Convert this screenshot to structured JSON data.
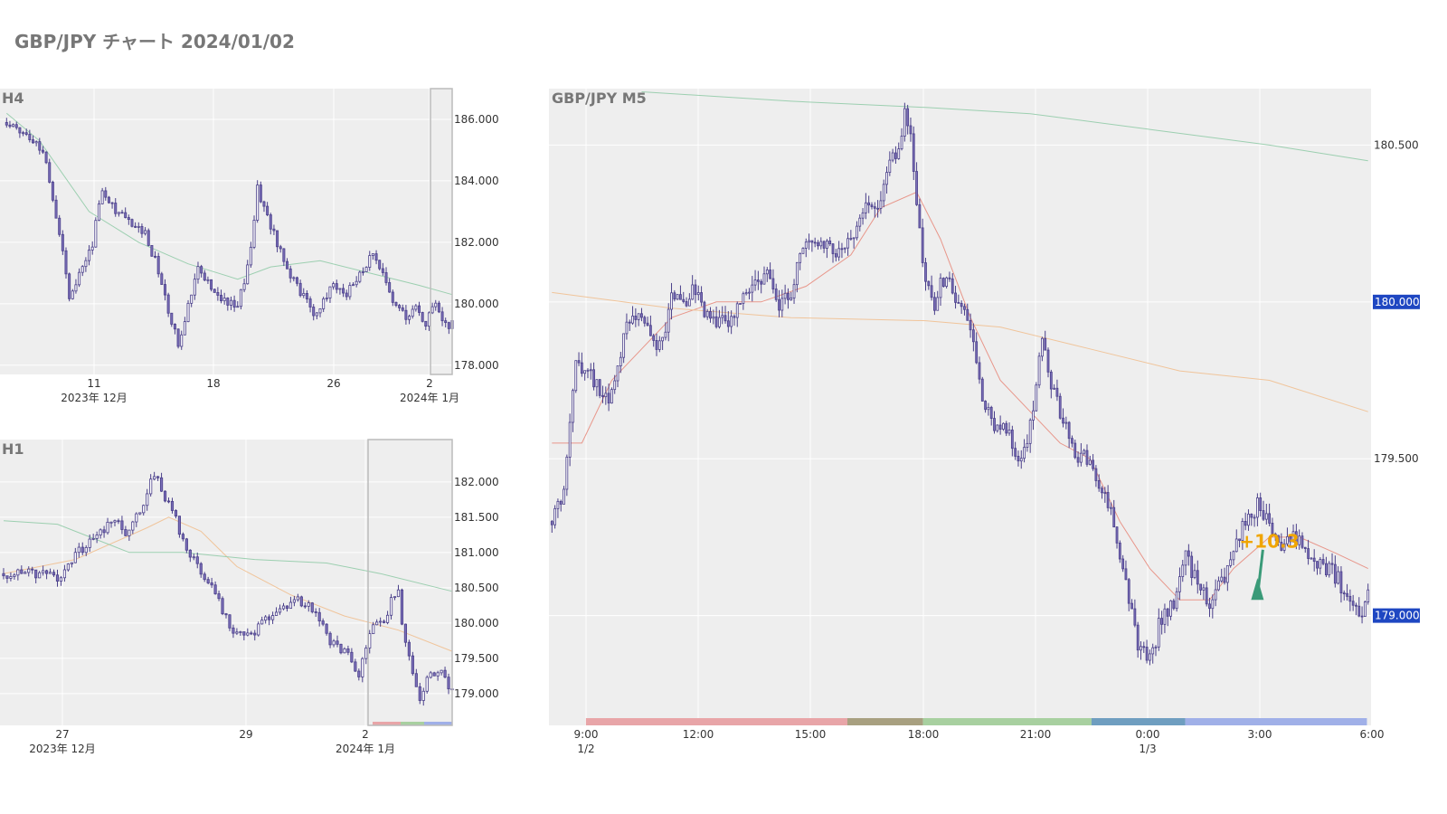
{
  "page": {
    "title": "GBP/JPY チャート 2024/01/02"
  },
  "colors": {
    "plot_bg": "#eeeeee",
    "grid": "#ffffff",
    "candle": "#7b6fb8",
    "candle_dark": "#4a3f8a",
    "ma_fast": "#e8968a",
    "ma_mid": "#f0c49a",
    "ma_slow": "#9ccfb0",
    "price_tag": "#1f47c2",
    "annotation": "#f0a500",
    "trade_marker": "#3a9a78"
  },
  "chart_data": [
    {
      "id": "h4",
      "type": "candlestick",
      "title": "H4",
      "ylim": [
        177.7,
        187.0
      ],
      "yticks": [
        178.0,
        180.0,
        182.0,
        184.0,
        186.0
      ],
      "ytick_labels": [
        "178.000",
        "180.000",
        "182.000",
        "184.000",
        "186.000"
      ],
      "xticks": [
        {
          "label": "11",
          "sub": "2023年 12月"
        },
        {
          "label": "18",
          "sub": ""
        },
        {
          "label": "26",
          "sub": ""
        },
        {
          "label": "2",
          "sub": "2024年 1月"
        }
      ],
      "anchors": [
        [
          0,
          185.9
        ],
        [
          8,
          185.4
        ],
        [
          12,
          184.7
        ],
        [
          16,
          182.3
        ],
        [
          19,
          180.3
        ],
        [
          23,
          181.2
        ],
        [
          26,
          182.0
        ],
        [
          29,
          183.8
        ],
        [
          32,
          183.2
        ],
        [
          36,
          182.7
        ],
        [
          42,
          182.3
        ],
        [
          46,
          181.1
        ],
        [
          49,
          179.7
        ],
        [
          52,
          178.7
        ],
        [
          55,
          180.0
        ],
        [
          58,
          181.3
        ],
        [
          62,
          180.5
        ],
        [
          66,
          180.1
        ],
        [
          70,
          179.8
        ],
        [
          74,
          181.8
        ],
        [
          76,
          183.8
        ],
        [
          79,
          182.8
        ],
        [
          82,
          182.0
        ],
        [
          86,
          181.0
        ],
        [
          90,
          180.2
        ],
        [
          93,
          179.7
        ],
        [
          96,
          180.0
        ],
        [
          99,
          180.7
        ],
        [
          103,
          180.3
        ],
        [
          107,
          180.9
        ],
        [
          111,
          181.6
        ],
        [
          114,
          180.9
        ],
        [
          117,
          180.0
        ],
        [
          121,
          179.6
        ],
        [
          124,
          179.9
        ],
        [
          127,
          179.3
        ],
        [
          130,
          180.1
        ],
        [
          133,
          179.3
        ],
        [
          135,
          179.3
        ]
      ],
      "ma": [
        {
          "name": "slow",
          "points": [
            [
              0,
              186.2
            ],
            [
              10,
              185.3
            ],
            [
              25,
              183.0
            ],
            [
              40,
              182.0
            ],
            [
              55,
              181.3
            ],
            [
              70,
              180.8
            ],
            [
              80,
              181.2
            ],
            [
              95,
              181.4
            ],
            [
              110,
              181.0
            ],
            [
              125,
              180.6
            ],
            [
              135,
              180.3
            ]
          ]
        }
      ],
      "n_candles": 136
    },
    {
      "id": "h1",
      "type": "candlestick",
      "title": "H1",
      "ylim": [
        178.55,
        182.6
      ],
      "yticks": [
        179.0,
        179.5,
        180.0,
        180.5,
        181.0,
        181.5,
        182.0
      ],
      "ytick_labels": [
        "179.000",
        "179.500",
        "180.000",
        "180.500",
        "181.000",
        "181.500",
        "182.000"
      ],
      "xticks": [
        {
          "label": "27",
          "sub": "2023年 12月"
        },
        {
          "label": "29",
          "sub": ""
        },
        {
          "label": "2",
          "sub": "2024年 1月"
        }
      ],
      "anchors": [
        [
          0,
          180.7
        ],
        [
          8,
          180.7
        ],
        [
          16,
          180.65
        ],
        [
          20,
          181.0
        ],
        [
          26,
          181.2
        ],
        [
          30,
          181.5
        ],
        [
          34,
          181.3
        ],
        [
          38,
          181.6
        ],
        [
          42,
          182.1
        ],
        [
          46,
          181.7
        ],
        [
          50,
          181.2
        ],
        [
          54,
          180.8
        ],
        [
          58,
          180.5
        ],
        [
          61,
          180.2
        ],
        [
          64,
          179.9
        ],
        [
          68,
          179.8
        ],
        [
          72,
          180.0
        ],
        [
          76,
          180.1
        ],
        [
          80,
          180.3
        ],
        [
          84,
          180.3
        ],
        [
          88,
          180.1
        ],
        [
          91,
          179.7
        ],
        [
          95,
          179.6
        ],
        [
          99,
          179.3
        ],
        [
          101,
          179.6
        ],
        [
          103,
          180.0
        ],
        [
          106,
          180.0
        ],
        [
          108,
          180.3
        ],
        [
          110,
          180.4
        ],
        [
          112,
          179.7
        ],
        [
          114,
          179.3
        ],
        [
          116,
          178.9
        ],
        [
          118,
          179.2
        ],
        [
          122,
          179.3
        ],
        [
          125,
          179.0
        ]
      ],
      "ma": [
        {
          "name": "mid",
          "points": [
            [
              0,
              180.7
            ],
            [
              20,
              180.9
            ],
            [
              40,
              181.35
            ],
            [
              46,
              181.5
            ],
            [
              55,
              181.3
            ],
            [
              65,
              180.8
            ],
            [
              80,
              180.4
            ],
            [
              95,
              180.1
            ],
            [
              110,
              179.9
            ],
            [
              125,
              179.6
            ]
          ]
        },
        {
          "name": "slow",
          "points": [
            [
              0,
              181.45
            ],
            [
              15,
              181.4
            ],
            [
              35,
              181.0
            ],
            [
              50,
              181.0
            ],
            [
              70,
              180.9
            ],
            [
              90,
              180.85
            ],
            [
              105,
              180.7
            ],
            [
              125,
              180.45
            ]
          ]
        }
      ],
      "n_candles": 126
    },
    {
      "id": "m5",
      "type": "candlestick",
      "title": "GBP/JPY M5",
      "ylim": [
        178.65,
        180.68
      ],
      "yticks": [
        179.0,
        179.5,
        180.0,
        180.5
      ],
      "ytick_labels": [
        "179.000",
        "179.500",
        "180.000",
        "180.500"
      ],
      "xticks": [
        {
          "label": "9:00",
          "sub": "1/2"
        },
        {
          "label": "12:00",
          "sub": ""
        },
        {
          "label": "15:00",
          "sub": ""
        },
        {
          "label": "18:00",
          "sub": ""
        },
        {
          "label": "21:00",
          "sub": ""
        },
        {
          "label": "0:00",
          "sub": "1/3"
        },
        {
          "label": "3:00",
          "sub": ""
        },
        {
          "label": "6:00",
          "sub": ""
        }
      ],
      "price_tags": [
        "180.000",
        "179.000"
      ],
      "annotation": "+10.3",
      "anchors": [
        [
          0,
          179.3
        ],
        [
          4,
          179.4
        ],
        [
          8,
          179.8
        ],
        [
          12,
          179.8
        ],
        [
          16,
          179.7
        ],
        [
          20,
          179.7
        ],
        [
          24,
          179.9
        ],
        [
          28,
          179.95
        ],
        [
          32,
          179.9
        ],
        [
          36,
          179.85
        ],
        [
          40,
          180.0
        ],
        [
          44,
          180.0
        ],
        [
          48,
          180.05
        ],
        [
          52,
          179.95
        ],
        [
          56,
          179.95
        ],
        [
          60,
          179.95
        ],
        [
          64,
          180.0
        ],
        [
          68,
          180.05
        ],
        [
          72,
          180.1
        ],
        [
          76,
          180.0
        ],
        [
          80,
          180.0
        ],
        [
          84,
          180.2
        ],
        [
          88,
          180.2
        ],
        [
          92,
          180.2
        ],
        [
          96,
          180.15
        ],
        [
          100,
          180.2
        ],
        [
          104,
          180.3
        ],
        [
          108,
          180.3
        ],
        [
          112,
          180.4
        ],
        [
          116,
          180.5
        ],
        [
          118,
          180.6
        ],
        [
          120,
          180.55
        ],
        [
          124,
          180.1
        ],
        [
          128,
          180.0
        ],
        [
          132,
          180.1
        ],
        [
          136,
          180.0
        ],
        [
          140,
          179.9
        ],
        [
          144,
          179.7
        ],
        [
          148,
          179.6
        ],
        [
          152,
          179.6
        ],
        [
          156,
          179.5
        ],
        [
          160,
          179.6
        ],
        [
          164,
          179.9
        ],
        [
          168,
          179.7
        ],
        [
          172,
          179.6
        ],
        [
          176,
          179.5
        ],
        [
          180,
          179.5
        ],
        [
          184,
          179.4
        ],
        [
          188,
          179.3
        ],
        [
          192,
          179.1
        ],
        [
          196,
          178.9
        ],
        [
          200,
          178.85
        ],
        [
          204,
          179.0
        ],
        [
          208,
          179.05
        ],
        [
          212,
          179.2
        ],
        [
          216,
          179.1
        ],
        [
          220,
          179.05
        ],
        [
          224,
          179.1
        ],
        [
          228,
          179.2
        ],
        [
          232,
          179.3
        ],
        [
          236,
          179.35
        ],
        [
          240,
          179.3
        ],
        [
          244,
          179.2
        ],
        [
          248,
          179.25
        ],
        [
          252,
          179.2
        ],
        [
          256,
          179.15
        ],
        [
          260,
          179.15
        ],
        [
          264,
          179.1
        ],
        [
          268,
          179.05
        ],
        [
          270,
          179.0
        ],
        [
          272,
          179.05
        ],
        [
          273,
          179.1
        ]
      ],
      "ma": [
        {
          "name": "fast",
          "points": [
            [
              0,
              179.55
            ],
            [
              10,
              179.55
            ],
            [
              20,
              179.75
            ],
            [
              30,
              179.85
            ],
            [
              40,
              179.95
            ],
            [
              55,
              180.0
            ],
            [
              70,
              180.0
            ],
            [
              85,
              180.05
            ],
            [
              100,
              180.15
            ],
            [
              110,
              180.3
            ],
            [
              122,
              180.35
            ],
            [
              130,
              180.2
            ],
            [
              140,
              179.95
            ],
            [
              150,
              179.75
            ],
            [
              160,
              179.65
            ],
            [
              170,
              179.55
            ],
            [
              180,
              179.5
            ],
            [
              190,
              179.3
            ],
            [
              200,
              179.15
            ],
            [
              210,
              179.05
            ],
            [
              220,
              179.05
            ],
            [
              228,
              179.15
            ],
            [
              240,
              179.25
            ],
            [
              250,
              179.25
            ],
            [
              262,
              179.2
            ],
            [
              273,
              179.15
            ]
          ]
        },
        {
          "name": "mid",
          "points": [
            [
              0,
              180.03
            ],
            [
              40,
              179.98
            ],
            [
              80,
              179.95
            ],
            [
              125,
              179.94
            ],
            [
              150,
              179.92
            ],
            [
              180,
              179.85
            ],
            [
              210,
              179.78
            ],
            [
              240,
              179.75
            ],
            [
              273,
              179.65
            ]
          ]
        },
        {
          "name": "slow",
          "points": [
            [
              30,
              180.67
            ],
            [
              80,
              180.64
            ],
            [
              125,
              180.62
            ],
            [
              160,
              180.6
            ],
            [
              200,
              180.55
            ],
            [
              240,
              180.5
            ],
            [
              273,
              180.45
            ]
          ]
        }
      ],
      "sessions": [
        {
          "color": "#e8a5a8",
          "from": 0.045,
          "to": 0.363
        },
        {
          "color": "#a8a080",
          "from": 0.363,
          "to": 0.455
        },
        {
          "color": "#a8d0a0",
          "from": 0.455,
          "to": 0.66
        },
        {
          "color": "#6f9ec0",
          "from": 0.66,
          "to": 0.774
        },
        {
          "color": "#a0b0e8",
          "from": 0.774,
          "to": 0.995
        }
      ],
      "n_candles": 274
    }
  ]
}
